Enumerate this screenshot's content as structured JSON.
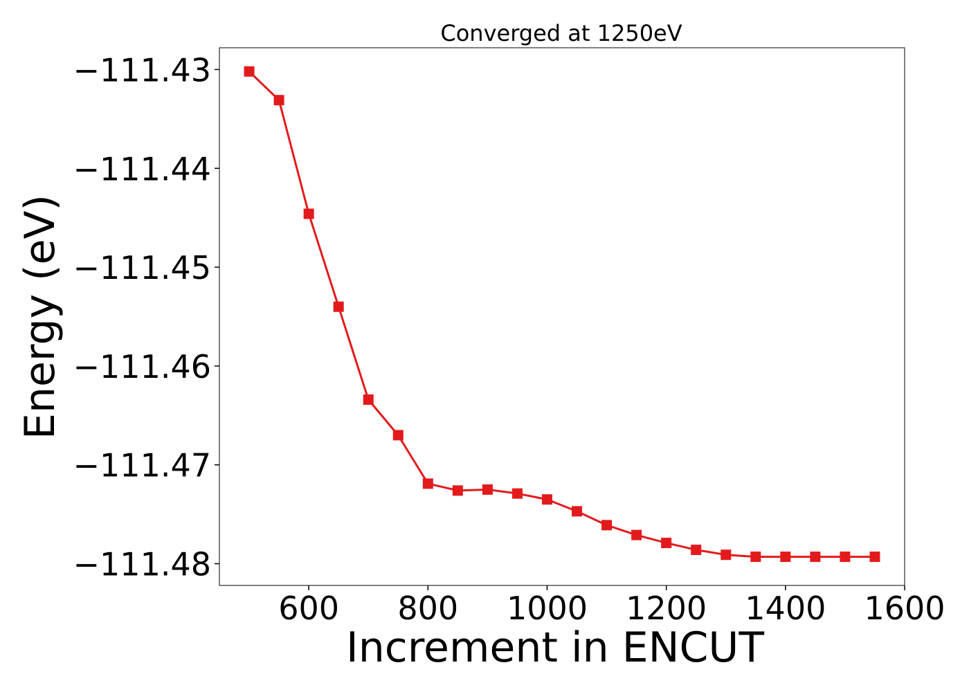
{
  "chart_data": {
    "type": "line",
    "title": "Converged at 1250eV",
    "xlabel": "Increment in ENCUT",
    "ylabel": "Energy (eV)",
    "xlim": [
      450,
      1600
    ],
    "ylim": [
      -111.4822,
      -111.4278
    ],
    "xticks": [
      600,
      800,
      1000,
      1200,
      1400,
      1600
    ],
    "xtick_labels": [
      "600",
      "800",
      "1000",
      "1200",
      "1400",
      "1600"
    ],
    "yticks": [
      -111.43,
      -111.44,
      -111.45,
      -111.46,
      -111.47,
      -111.48
    ],
    "ytick_labels": [
      "−111.43",
      "−111.44",
      "−111.45",
      "−111.46",
      "−111.47",
      "−111.48"
    ],
    "grid": false,
    "series": [
      {
        "color": "#e31a1c",
        "marker": "square",
        "x": [
          500,
          550,
          600,
          650,
          700,
          750,
          800,
          850,
          900,
          950,
          1000,
          1050,
          1100,
          1150,
          1200,
          1250,
          1300,
          1350,
          1400,
          1450,
          1500,
          1550
        ],
        "y": [
          -111.4302,
          -111.4331,
          -111.4446,
          -111.454,
          -111.4634,
          -111.467,
          -111.4719,
          -111.4726,
          -111.4725,
          -111.4729,
          -111.4735,
          -111.4747,
          -111.4761,
          -111.4771,
          -111.4779,
          -111.4786,
          -111.4791,
          -111.4793,
          -111.4793,
          -111.4793,
          -111.4793,
          -111.4793
        ]
      }
    ]
  }
}
